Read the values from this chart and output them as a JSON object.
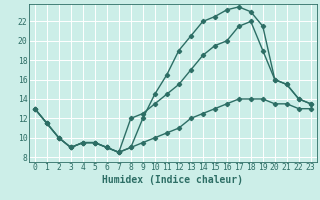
{
  "background_color": "#cceee8",
  "grid_color": "#ffffff",
  "line_color": "#2d6e65",
  "marker": "D",
  "markersize": 2.2,
  "linewidth": 1.0,
  "xlabel": "Humidex (Indice chaleur)",
  "xlabel_fontsize": 7,
  "tick_fontsize": 5.8,
  "xlim": [
    -0.5,
    23.5
  ],
  "ylim": [
    7.5,
    23.8
  ],
  "yticks": [
    8,
    10,
    12,
    14,
    16,
    18,
    20,
    22
  ],
  "xticks": [
    0,
    1,
    2,
    3,
    4,
    5,
    6,
    7,
    8,
    9,
    10,
    11,
    12,
    13,
    14,
    15,
    16,
    17,
    18,
    19,
    20,
    21,
    22,
    23
  ],
  "line1_x": [
    0,
    1,
    2,
    3,
    4,
    5,
    6,
    7,
    8,
    9,
    10,
    11,
    12,
    13,
    14,
    15,
    16,
    17,
    18,
    19,
    20,
    21,
    22,
    23
  ],
  "line1_y": [
    13,
    11.5,
    10,
    9,
    9.5,
    9.5,
    9,
    8.5,
    9,
    9.5,
    10,
    10.5,
    11,
    12,
    12.5,
    13,
    13.5,
    14,
    14,
    14,
    13.5,
    13.5,
    13,
    13
  ],
  "line2_x": [
    0,
    1,
    2,
    3,
    4,
    5,
    6,
    7,
    8,
    9,
    10,
    11,
    12,
    13,
    14,
    15,
    16,
    17,
    18,
    19,
    20,
    21,
    22,
    23
  ],
  "line2_y": [
    13,
    11.5,
    10,
    9,
    9.5,
    9.5,
    9,
    8.5,
    9,
    12,
    14.5,
    16.5,
    19,
    20.5,
    22,
    22.5,
    23.2,
    23.5,
    23,
    21.5,
    16,
    15.5,
    14,
    13.5
  ],
  "line3_x": [
    0,
    1,
    2,
    3,
    4,
    5,
    6,
    7,
    8,
    9,
    10,
    11,
    12,
    13,
    14,
    15,
    16,
    17,
    18,
    19,
    20,
    21,
    22,
    23
  ],
  "line3_y": [
    13,
    11.5,
    10,
    9,
    9.5,
    9.5,
    9,
    8.5,
    12,
    12.5,
    13.5,
    14.5,
    15.5,
    17,
    18.5,
    19.5,
    20,
    21.5,
    22,
    19,
    16,
    15.5,
    14,
    13.5
  ]
}
